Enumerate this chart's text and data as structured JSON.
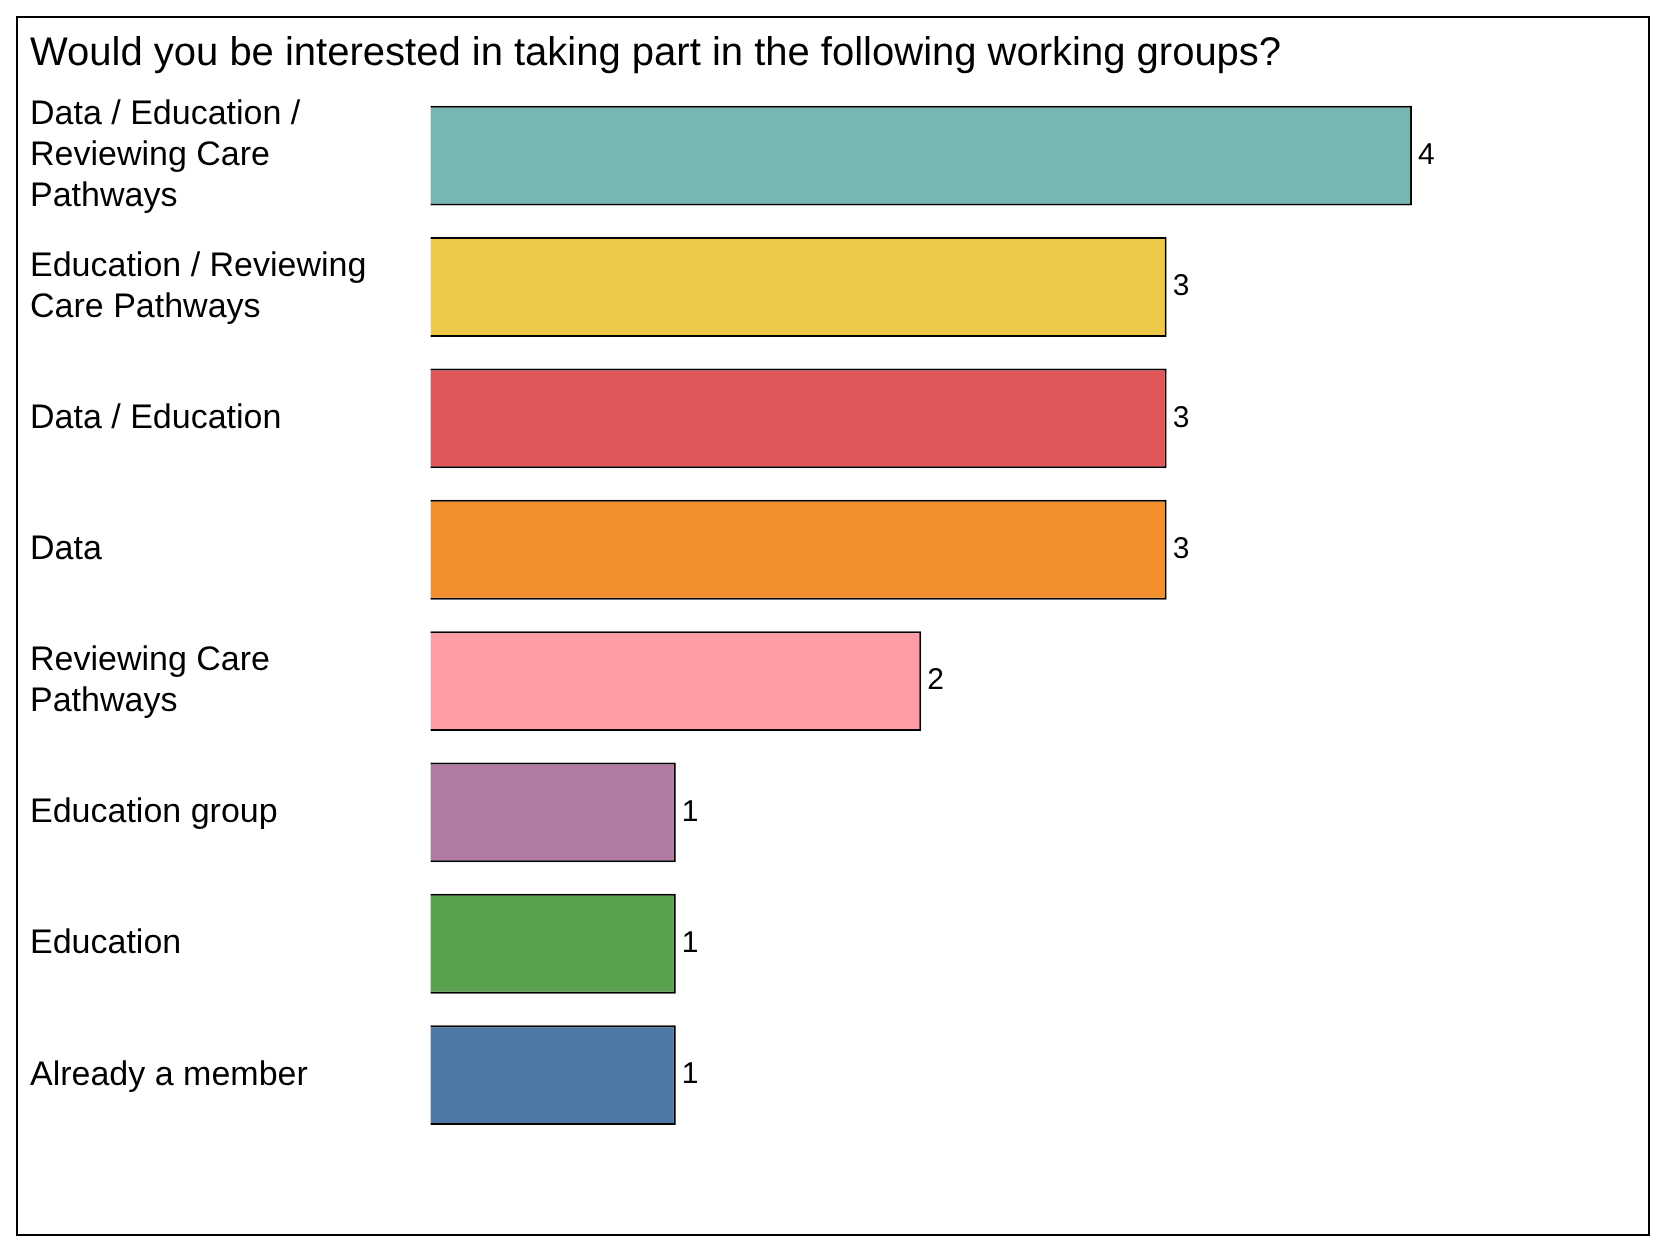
{
  "chart_data": {
    "type": "bar",
    "orientation": "horizontal",
    "title": "Would you be interested in taking part in the following working groups?",
    "categories": [
      "Data / Education / Reviewing Care Pathways",
      "Education / Reviewing Care Pathways",
      "Data / Education",
      "Data",
      "Reviewing Care Pathways",
      "Education group",
      "Education",
      "Already a member"
    ],
    "values": [
      4,
      3,
      3,
      3,
      2,
      1,
      1,
      1
    ],
    "colors": [
      "#76b7b2",
      "#edc948",
      "#e15759",
      "#f28e2b",
      "#ff9da7",
      "#b07aa1",
      "#59a14f",
      "#4e79a7"
    ],
    "data_labels": true,
    "grid": false,
    "legend": false
  }
}
